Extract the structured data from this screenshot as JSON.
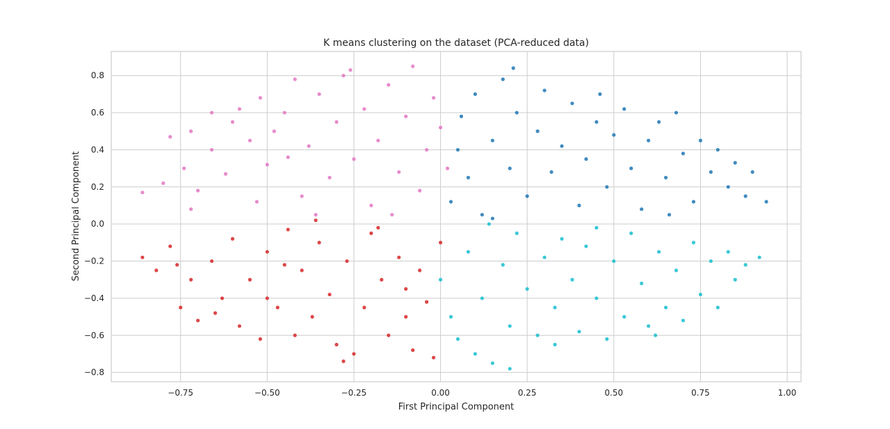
{
  "chart_data": {
    "type": "scatter",
    "title": "K means clustering on the dataset (PCA-reduced data)",
    "xlabel": "First Principal Component",
    "ylabel": "Second Principal Component",
    "xlim": [
      -0.95,
      1.04
    ],
    "ylim": [
      -0.85,
      0.93
    ],
    "x_ticks": [
      -0.75,
      -0.5,
      -0.25,
      0.0,
      0.25,
      0.5,
      0.75,
      1.0
    ],
    "x_tick_labels": [
      "−0.75",
      "−0.50",
      "−0.25",
      "0.00",
      "0.25",
      "0.50",
      "0.75",
      "1.00"
    ],
    "y_ticks": [
      -0.8,
      -0.6,
      -0.4,
      -0.2,
      0.0,
      0.2,
      0.4,
      0.6,
      0.8
    ],
    "y_tick_labels": [
      "−0.8",
      "−0.6",
      "−0.4",
      "−0.2",
      "0.0",
      "0.2",
      "0.4",
      "0.6",
      "0.8"
    ],
    "grid": true,
    "legend": "none",
    "series": [
      {
        "color": "#e377c2",
        "values": [
          [
            -0.86,
            0.17
          ],
          [
            -0.8,
            0.22
          ],
          [
            -0.78,
            0.47
          ],
          [
            -0.74,
            0.3
          ],
          [
            -0.72,
            0.5
          ],
          [
            -0.7,
            0.18
          ],
          [
            -0.66,
            0.4
          ],
          [
            -0.62,
            0.27
          ],
          [
            -0.6,
            0.55
          ],
          [
            -0.58,
            0.62
          ],
          [
            -0.55,
            0.45
          ],
          [
            -0.52,
            0.68
          ],
          [
            -0.5,
            0.32
          ],
          [
            -0.48,
            0.5
          ],
          [
            -0.45,
            0.6
          ],
          [
            -0.42,
            0.78
          ],
          [
            -0.4,
            0.15
          ],
          [
            -0.38,
            0.42
          ],
          [
            -0.35,
            0.7
          ],
          [
            -0.32,
            0.25
          ],
          [
            -0.3,
            0.55
          ],
          [
            -0.28,
            0.8
          ],
          [
            -0.25,
            0.35
          ],
          [
            -0.22,
            0.62
          ],
          [
            -0.2,
            0.1
          ],
          [
            -0.18,
            0.45
          ],
          [
            -0.15,
            0.75
          ],
          [
            -0.12,
            0.28
          ],
          [
            -0.1,
            0.58
          ],
          [
            -0.08,
            0.85
          ],
          [
            -0.06,
            0.18
          ],
          [
            -0.04,
            0.4
          ],
          [
            -0.02,
            0.68
          ],
          [
            0.0,
            0.52
          ],
          [
            0.02,
            0.3
          ],
          [
            -0.66,
            0.6
          ],
          [
            -0.53,
            0.12
          ],
          [
            -0.36,
            0.05
          ],
          [
            -0.14,
            0.05
          ],
          [
            -0.26,
            0.83
          ],
          [
            -0.44,
            0.36
          ],
          [
            -0.72,
            0.08
          ]
        ]
      },
      {
        "color": "#1f77b4",
        "values": [
          [
            0.03,
            0.12
          ],
          [
            0.05,
            0.4
          ],
          [
            0.06,
            0.58
          ],
          [
            0.08,
            0.25
          ],
          [
            0.1,
            0.7
          ],
          [
            0.12,
            0.05
          ],
          [
            0.15,
            0.45
          ],
          [
            0.18,
            0.78
          ],
          [
            0.2,
            0.3
          ],
          [
            0.22,
            0.6
          ],
          [
            0.25,
            0.15
          ],
          [
            0.28,
            0.5
          ],
          [
            0.3,
            0.72
          ],
          [
            0.32,
            0.28
          ],
          [
            0.35,
            0.42
          ],
          [
            0.38,
            0.65
          ],
          [
            0.4,
            0.1
          ],
          [
            0.42,
            0.35
          ],
          [
            0.45,
            0.55
          ],
          [
            0.48,
            0.2
          ],
          [
            0.5,
            0.48
          ],
          [
            0.53,
            0.62
          ],
          [
            0.55,
            0.3
          ],
          [
            0.58,
            0.08
          ],
          [
            0.6,
            0.45
          ],
          [
            0.63,
            0.55
          ],
          [
            0.65,
            0.25
          ],
          [
            0.68,
            0.6
          ],
          [
            0.7,
            0.38
          ],
          [
            0.73,
            0.12
          ],
          [
            0.75,
            0.45
          ],
          [
            0.78,
            0.28
          ],
          [
            0.8,
            0.4
          ],
          [
            0.83,
            0.2
          ],
          [
            0.85,
            0.33
          ],
          [
            0.88,
            0.15
          ],
          [
            0.9,
            0.28
          ],
          [
            0.94,
            0.12
          ],
          [
            0.21,
            0.84
          ],
          [
            0.15,
            0.03
          ],
          [
            0.46,
            0.7
          ],
          [
            0.66,
            0.05
          ]
        ]
      },
      {
        "color": "#d62728",
        "values": [
          [
            -0.86,
            -0.18
          ],
          [
            -0.82,
            -0.25
          ],
          [
            -0.78,
            -0.12
          ],
          [
            -0.75,
            -0.45
          ],
          [
            -0.72,
            -0.3
          ],
          [
            -0.7,
            -0.52
          ],
          [
            -0.66,
            -0.2
          ],
          [
            -0.63,
            -0.4
          ],
          [
            -0.6,
            -0.08
          ],
          [
            -0.58,
            -0.55
          ],
          [
            -0.55,
            -0.3
          ],
          [
            -0.52,
            -0.62
          ],
          [
            -0.5,
            -0.15
          ],
          [
            -0.47,
            -0.45
          ],
          [
            -0.44,
            -0.03
          ],
          [
            -0.42,
            -0.6
          ],
          [
            -0.4,
            -0.25
          ],
          [
            -0.37,
            -0.5
          ],
          [
            -0.35,
            -0.1
          ],
          [
            -0.32,
            -0.38
          ],
          [
            -0.3,
            -0.65
          ],
          [
            -0.27,
            -0.2
          ],
          [
            -0.25,
            -0.7
          ],
          [
            -0.22,
            -0.45
          ],
          [
            -0.2,
            -0.05
          ],
          [
            -0.17,
            -0.3
          ],
          [
            -0.15,
            -0.6
          ],
          [
            -0.12,
            -0.18
          ],
          [
            -0.1,
            -0.5
          ],
          [
            -0.08,
            -0.68
          ],
          [
            -0.06,
            -0.25
          ],
          [
            -0.04,
            -0.42
          ],
          [
            -0.02,
            -0.72
          ],
          [
            0.0,
            -0.1
          ],
          [
            -0.5,
            -0.4
          ],
          [
            -0.28,
            -0.74
          ],
          [
            -0.65,
            -0.48
          ],
          [
            -0.36,
            0.02
          ],
          [
            -0.18,
            -0.02
          ],
          [
            -0.76,
            -0.22
          ],
          [
            -0.45,
            -0.22
          ],
          [
            -0.1,
            -0.35
          ]
        ]
      },
      {
        "color": "#17becf",
        "values": [
          [
            0.0,
            -0.3
          ],
          [
            0.03,
            -0.5
          ],
          [
            0.05,
            -0.62
          ],
          [
            0.08,
            -0.15
          ],
          [
            0.1,
            -0.7
          ],
          [
            0.12,
            -0.4
          ],
          [
            0.15,
            -0.75
          ],
          [
            0.18,
            -0.22
          ],
          [
            0.2,
            -0.55
          ],
          [
            0.22,
            -0.05
          ],
          [
            0.25,
            -0.35
          ],
          [
            0.28,
            -0.6
          ],
          [
            0.3,
            -0.18
          ],
          [
            0.33,
            -0.45
          ],
          [
            0.35,
            -0.08
          ],
          [
            0.38,
            -0.3
          ],
          [
            0.4,
            -0.58
          ],
          [
            0.42,
            -0.12
          ],
          [
            0.45,
            -0.4
          ],
          [
            0.48,
            -0.62
          ],
          [
            0.5,
            -0.2
          ],
          [
            0.53,
            -0.5
          ],
          [
            0.55,
            -0.05
          ],
          [
            0.58,
            -0.32
          ],
          [
            0.6,
            -0.55
          ],
          [
            0.63,
            -0.15
          ],
          [
            0.65,
            -0.45
          ],
          [
            0.68,
            -0.25
          ],
          [
            0.7,
            -0.52
          ],
          [
            0.73,
            -0.1
          ],
          [
            0.75,
            -0.38
          ],
          [
            0.78,
            -0.2
          ],
          [
            0.8,
            -0.45
          ],
          [
            0.83,
            -0.15
          ],
          [
            0.85,
            -0.3
          ],
          [
            0.88,
            -0.22
          ],
          [
            0.92,
            -0.18
          ],
          [
            0.2,
            -0.78
          ],
          [
            0.14,
            0.0
          ],
          [
            0.45,
            -0.02
          ],
          [
            0.62,
            -0.6
          ],
          [
            0.33,
            -0.65
          ]
        ]
      }
    ]
  }
}
